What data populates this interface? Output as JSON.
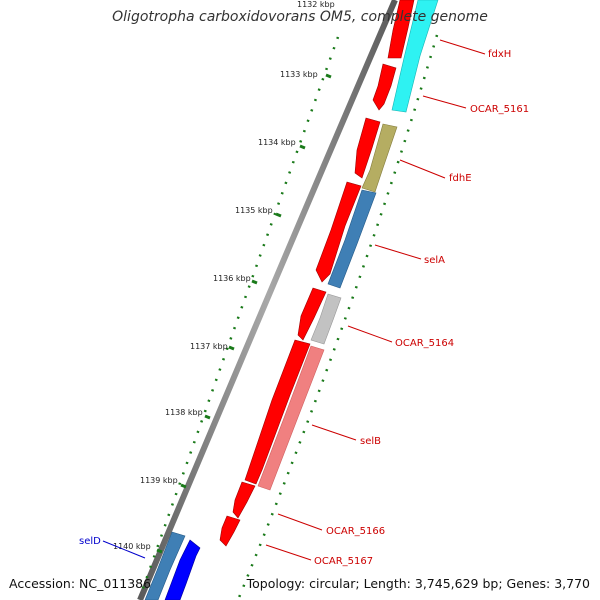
{
  "title": "Oligotropha carboxidovorans OM5, complete genome",
  "footer": {
    "accession": "Accession: NC_011386",
    "summary": "Topology: circular; Length: 3,745,629 bp; Genes: 3,770"
  },
  "kbp_labels": [
    "1132 kbp",
    "1133 kbp",
    "1134 kbp",
    "1135 kbp",
    "1136 kbp",
    "1137 kbp",
    "1138 kbp",
    "1139 kbp",
    "1140 kbp"
  ],
  "gene_labels": [
    {
      "name": "fdxH",
      "color": "#cc0000"
    },
    {
      "name": "OCAR_5161",
      "color": "#cc0000"
    },
    {
      "name": "fdhE",
      "color": "#cc0000"
    },
    {
      "name": "selA",
      "color": "#cc0000"
    },
    {
      "name": "OCAR_5164",
      "color": "#cc0000"
    },
    {
      "name": "selB",
      "color": "#cc0000"
    },
    {
      "name": "OCAR_5166",
      "color": "#cc0000"
    },
    {
      "name": "OCAR_5167",
      "color": "#cc0000"
    },
    {
      "name": "selD",
      "color": "#0000cc"
    }
  ],
  "colors": {
    "cds": "#ff0000",
    "backbone": "#777777",
    "tick": "#1a7a1a",
    "cyan": "#2ef2f2",
    "olive": "#b5ad62",
    "steelblue": "#3f7fb5",
    "gray": "#c2c2c2",
    "salmon": "#f08080",
    "blue": "#0000ff"
  }
}
